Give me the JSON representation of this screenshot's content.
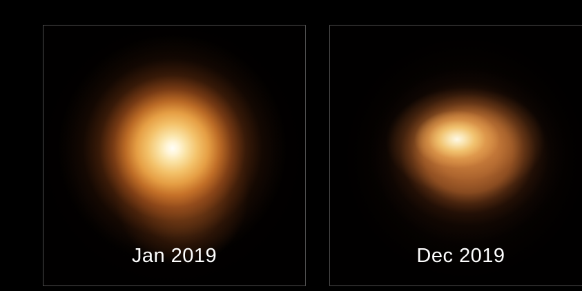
{
  "colors": {
    "background": "#000000",
    "panel-border": "#4d4d4d",
    "label-text": "#ffffff",
    "star-core-bright": "#fffef8",
    "star-glow-orange": "#e59e44",
    "star-halo-brown": "#5e2a0d",
    "dim-star-spot": "#fef8e6",
    "dim-star-disc": "#a25e2c"
  },
  "panels": [
    {
      "label": "Jan 2019"
    },
    {
      "label": "Dec 2019"
    }
  ]
}
